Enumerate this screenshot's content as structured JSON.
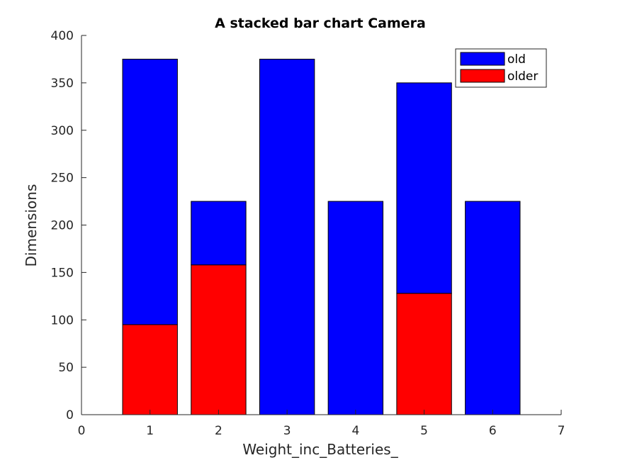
{
  "chart_data": {
    "type": "bar",
    "stacked": true,
    "title": "A stacked bar chart Camera",
    "xlabel": "Weight_inc_Batteries_",
    "ylabel": "Dimensions",
    "xlim": [
      0,
      7
    ],
    "ylim": [
      0,
      400
    ],
    "xticks": [
      "0",
      "1",
      "2",
      "3",
      "4",
      "5",
      "6",
      "7"
    ],
    "yticks": [
      "0",
      "50",
      "100",
      "150",
      "200",
      "250",
      "300",
      "350",
      "400"
    ],
    "x": [
      1,
      2,
      3,
      4,
      5,
      6
    ],
    "series": [
      {
        "name": "older",
        "color": "#ff0000",
        "values": [
          95,
          158,
          0,
          0,
          128,
          0
        ]
      },
      {
        "name": "old",
        "color": "#0000ff",
        "values": [
          280,
          67,
          375,
          225,
          222,
          225
        ]
      }
    ],
    "legend": {
      "position": "top-right",
      "order": [
        "old",
        "older"
      ]
    },
    "grid": false
  }
}
